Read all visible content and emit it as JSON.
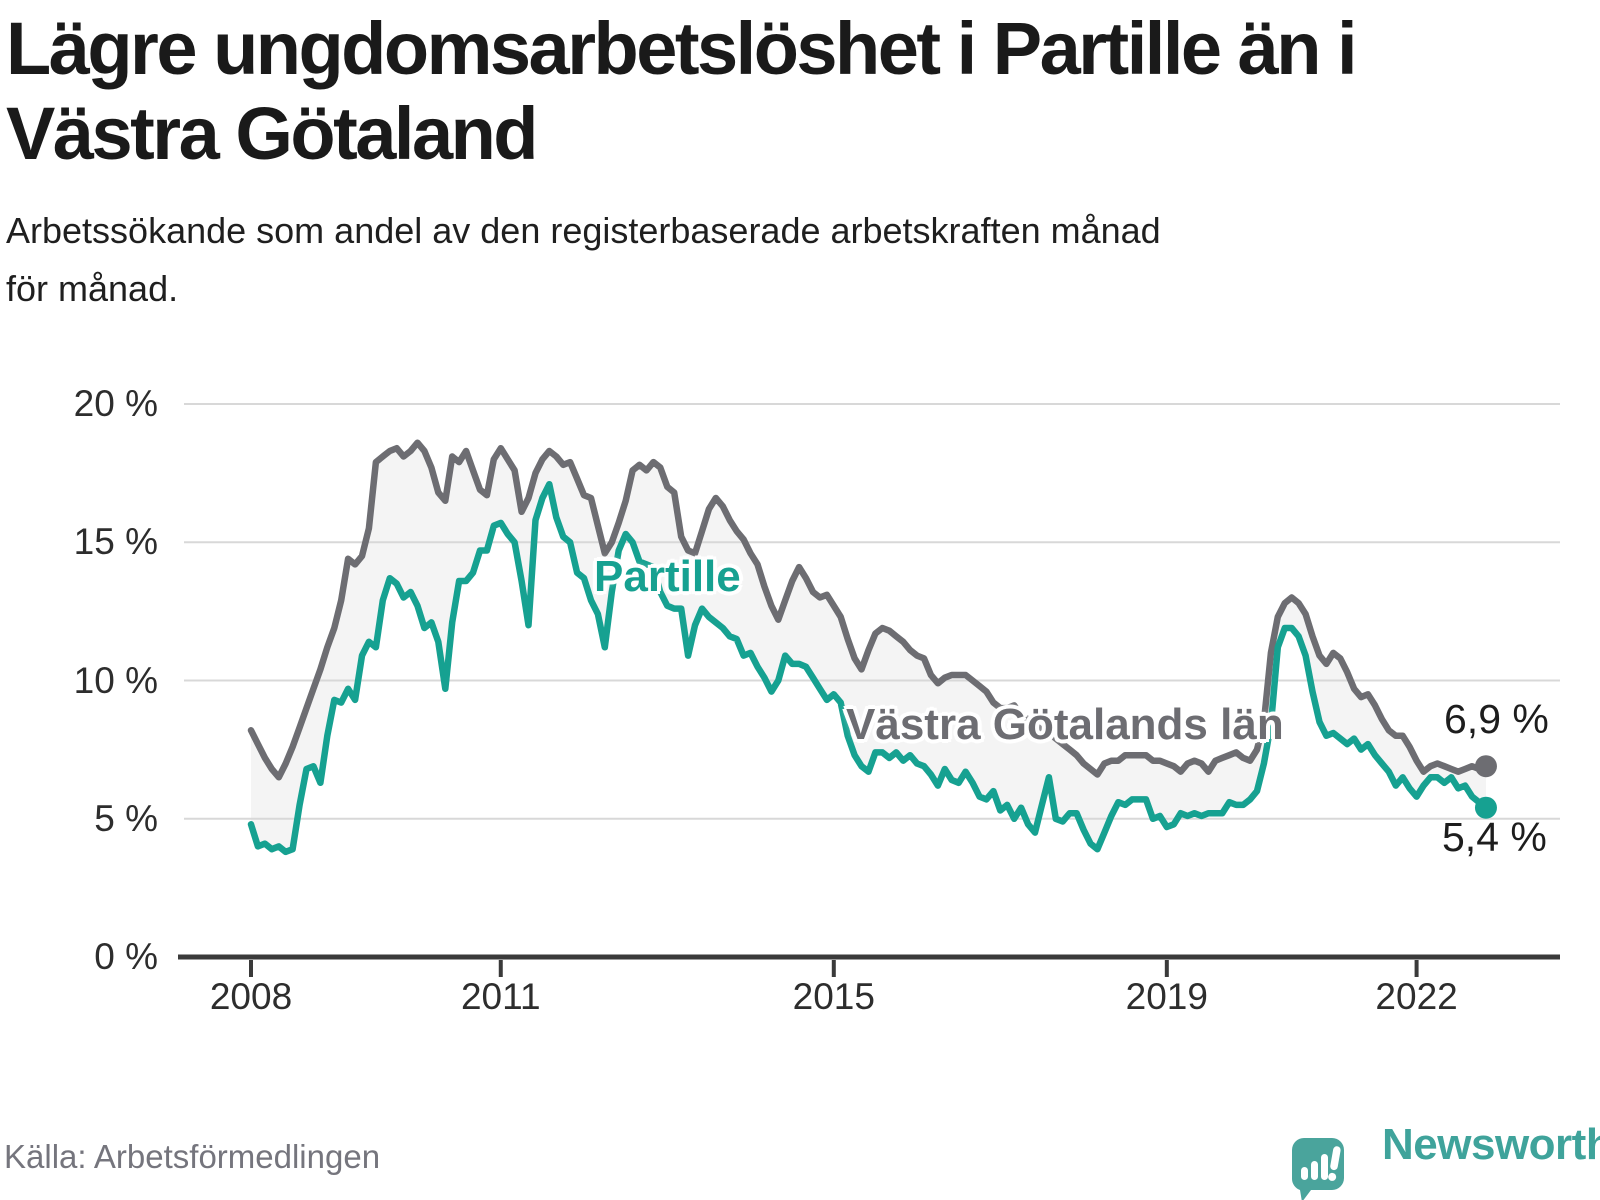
{
  "title": {
    "line1": "Lägre ungdomsarbetslöshet i Partille än i",
    "line2": "Västra Götaland"
  },
  "subtitle": {
    "line1": "Arbetssökande som andel av den registerbaserade arbetskraften månad",
    "line2": "för månad."
  },
  "source": "Källa: Arbetsförmedlingen",
  "logo": {
    "text": "Newsworthy"
  },
  "colors": {
    "partille": "#16a191",
    "region": "#6d6d72",
    "band": "#f4f4f4",
    "grid": "#d8d8d8",
    "axis": "#3a3a3a",
    "text": "#1a1a1a",
    "muted": "#75757d",
    "logo_teal": "#4aa49c"
  },
  "chart_data": {
    "type": "line",
    "title": "Lägre ungdomsarbetslöshet i Partille än i Västra Götaland",
    "subtitle": "Arbetssökande som andel av den registerbaserade arbetskraften månad för månad.",
    "x_unit": "month",
    "start": "2008-01",
    "end": "2022-11",
    "ylim": [
      0,
      20
    ],
    "yticks": [
      0,
      5,
      10,
      15,
      20
    ],
    "ytick_labels": [
      "0 %",
      "5 %",
      "10 %",
      "15 %",
      "20 %"
    ],
    "xticks": [
      2008,
      2011,
      2015,
      2019,
      2022
    ],
    "xtick_labels": [
      "2008",
      "2011",
      "2015",
      "2019",
      "2022"
    ],
    "grid": "horizontal",
    "legend_position": "inline-labels",
    "series": [
      {
        "name": "Västra Götalands län",
        "color": "#6d6d72",
        "end_value": 6.9,
        "end_label": "6,9 %",
        "values": [
          8.2,
          7.7,
          7.2,
          6.8,
          6.5,
          7.0,
          7.6,
          8.3,
          9.0,
          9.7,
          10.4,
          11.2,
          11.9,
          12.9,
          14.4,
          14.2,
          14.5,
          15.5,
          17.9,
          18.1,
          18.3,
          18.4,
          18.1,
          18.3,
          18.6,
          18.3,
          17.7,
          16.8,
          16.5,
          18.1,
          17.9,
          18.3,
          17.6,
          16.9,
          16.7,
          18.0,
          18.4,
          18.0,
          17.6,
          16.1,
          16.6,
          17.5,
          18.0,
          18.3,
          18.1,
          17.8,
          17.9,
          17.3,
          16.7,
          16.6,
          15.6,
          14.6,
          15.0,
          15.7,
          16.5,
          17.6,
          17.8,
          17.6,
          17.9,
          17.7,
          17.0,
          16.8,
          15.2,
          14.7,
          14.6,
          15.4,
          16.2,
          16.6,
          16.3,
          15.8,
          15.4,
          15.1,
          14.6,
          14.2,
          13.4,
          12.7,
          12.2,
          12.9,
          13.6,
          14.1,
          13.7,
          13.2,
          13.0,
          13.1,
          12.7,
          12.3,
          11.5,
          10.8,
          10.4,
          11.1,
          11.7,
          11.9,
          11.8,
          11.6,
          11.4,
          11.1,
          10.9,
          10.8,
          10.2,
          9.9,
          10.1,
          10.2,
          10.2,
          10.2,
          10.0,
          9.8,
          9.6,
          9.2,
          9.0,
          9.0,
          9.1,
          8.7,
          8.6,
          8.4,
          8.2,
          8.1,
          7.9,
          7.7,
          7.5,
          7.3,
          7.0,
          6.8,
          6.6,
          7.0,
          7.1,
          7.1,
          7.3,
          7.3,
          7.3,
          7.3,
          7.1,
          7.1,
          7.0,
          6.9,
          6.7,
          7.0,
          7.1,
          7.0,
          6.7,
          7.1,
          7.2,
          7.3,
          7.4,
          7.2,
          7.1,
          7.5,
          8.5,
          11.0,
          12.3,
          12.8,
          13.0,
          12.8,
          12.4,
          11.6,
          10.9,
          10.6,
          11.0,
          10.8,
          10.3,
          9.7,
          9.4,
          9.5,
          9.1,
          8.6,
          8.2,
          8.0,
          8.0,
          7.6,
          7.1,
          6.7,
          6.9,
          7.0,
          6.9,
          6.8,
          6.7,
          6.8,
          6.9,
          6.8,
          6.9
        ]
      },
      {
        "name": "Partille",
        "color": "#16a191",
        "end_value": 5.4,
        "end_label": "5,4 %",
        "values": [
          4.8,
          4.0,
          4.1,
          3.9,
          4.0,
          3.8,
          3.9,
          5.5,
          6.8,
          6.9,
          6.3,
          8.0,
          9.3,
          9.2,
          9.7,
          9.3,
          10.9,
          11.4,
          11.2,
          12.9,
          13.7,
          13.5,
          13.0,
          13.2,
          12.7,
          11.9,
          12.1,
          11.4,
          9.7,
          12.1,
          13.6,
          13.6,
          13.9,
          14.7,
          14.7,
          15.6,
          15.7,
          15.3,
          15.0,
          13.6,
          12.0,
          15.8,
          16.6,
          17.1,
          15.9,
          15.2,
          15.0,
          13.9,
          13.7,
          12.9,
          12.4,
          11.2,
          13.2,
          14.7,
          15.3,
          15.0,
          14.3,
          14.2,
          14.1,
          13.2,
          12.7,
          12.6,
          12.6,
          10.9,
          12.0,
          12.6,
          12.3,
          12.1,
          11.9,
          11.6,
          11.5,
          10.9,
          11.0,
          10.5,
          10.1,
          9.6,
          10.0,
          10.9,
          10.6,
          10.6,
          10.5,
          10.1,
          9.7,
          9.3,
          9.5,
          9.2,
          8.0,
          7.3,
          6.9,
          6.7,
          7.4,
          7.4,
          7.2,
          7.4,
          7.1,
          7.3,
          7.0,
          6.9,
          6.6,
          6.2,
          6.8,
          6.4,
          6.3,
          6.7,
          6.3,
          5.8,
          5.7,
          6.0,
          5.3,
          5.5,
          5.0,
          5.4,
          4.8,
          4.5,
          5.5,
          6.5,
          5.0,
          4.9,
          5.2,
          5.2,
          4.6,
          4.1,
          3.9,
          4.5,
          5.1,
          5.6,
          5.5,
          5.7,
          5.7,
          5.7,
          5.0,
          5.1,
          4.7,
          4.8,
          5.2,
          5.1,
          5.2,
          5.1,
          5.2,
          5.2,
          5.2,
          5.6,
          5.5,
          5.5,
          5.7,
          6.0,
          7.0,
          8.4,
          11.2,
          11.9,
          11.9,
          11.6,
          10.9,
          9.6,
          8.5,
          8.0,
          8.1,
          7.9,
          7.7,
          7.9,
          7.5,
          7.7,
          7.3,
          7.0,
          6.7,
          6.2,
          6.5,
          6.1,
          5.8,
          6.2,
          6.5,
          6.5,
          6.3,
          6.5,
          6.1,
          6.2,
          5.8,
          5.6,
          5.4
        ]
      }
    ]
  }
}
